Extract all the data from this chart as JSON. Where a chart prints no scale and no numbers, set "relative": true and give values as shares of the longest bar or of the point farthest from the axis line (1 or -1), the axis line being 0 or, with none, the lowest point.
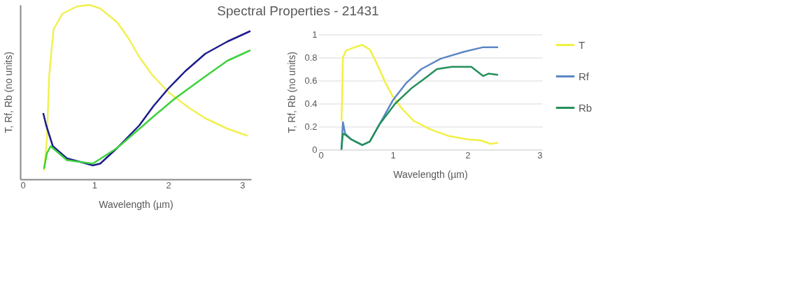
{
  "chart_data": [
    {
      "type": "line",
      "title": "Spectral Properties - 21431",
      "xlabel": "Wavelength (µm)",
      "ylabel": "T, Rf, Rb (no units)",
      "relative": true,
      "xlim": [
        0,
        3.12
      ],
      "xticks": [
        0,
        1,
        2,
        3
      ],
      "tick_labels": "x",
      "grid": false,
      "legend": false,
      "series": [
        {
          "color": "#f0f050",
          "x": [
            0.32,
            0.36,
            0.39,
            0.42,
            0.45,
            0.57,
            0.76,
            0.93,
            1.08,
            1.31,
            1.46,
            1.61,
            1.78,
            2.0,
            2.28,
            2.5,
            2.8,
            3.07
          ],
          "values": [
            0.05,
            0.23,
            0.59,
            0.73,
            0.86,
            0.95,
            0.99,
            1.0,
            0.98,
            0.9,
            0.81,
            0.7,
            0.6,
            0.5,
            0.41,
            0.35,
            0.29,
            0.25
          ]
        },
        {
          "color": "#1c1c8c",
          "x": [
            0.31,
            0.35,
            0.44,
            0.63,
            0.81,
            0.98,
            1.08,
            1.31,
            1.61,
            1.8,
            2.0,
            2.23,
            2.5,
            2.8,
            3.11
          ],
          "values": [
            0.38,
            0.31,
            0.19,
            0.12,
            0.1,
            0.08,
            0.09,
            0.18,
            0.31,
            0.42,
            0.52,
            0.62,
            0.72,
            0.79,
            0.85
          ]
        },
        {
          "color": "#3cd23c",
          "x": [
            0.32,
            0.36,
            0.41,
            0.63,
            0.98,
            1.31,
            1.61,
            1.8,
            2.08,
            2.5,
            2.8,
            3.11
          ],
          "values": [
            0.06,
            0.15,
            0.19,
            0.11,
            0.09,
            0.18,
            0.29,
            0.36,
            0.46,
            0.59,
            0.68,
            0.74
          ]
        }
      ]
    },
    {
      "type": "line",
      "xlabel": "Wavelength (µm)",
      "ylabel": "T, Rf, Rb (no units)",
      "xlim": [
        0,
        3
      ],
      "xticks": [
        0,
        1,
        2,
        3
      ],
      "ylim": [
        0,
        1
      ],
      "yticks": [
        0,
        0.2,
        0.4,
        0.6,
        0.8,
        1
      ],
      "grid": "y",
      "legend": "right",
      "series": [
        {
          "name": "T",
          "color": "#f2f040",
          "x": [
            0.31,
            0.32,
            0.33,
            0.37,
            0.49,
            0.59,
            0.69,
            0.79,
            0.9,
            1.0,
            1.13,
            1.28,
            1.49,
            1.74,
            2.0,
            2.18,
            2.31,
            2.41
          ],
          "values": [
            0.25,
            0.48,
            0.8,
            0.86,
            0.89,
            0.91,
            0.87,
            0.74,
            0.58,
            0.46,
            0.35,
            0.25,
            0.18,
            0.12,
            0.09,
            0.08,
            0.05,
            0.06
          ]
        },
        {
          "name": "Rf",
          "color": "#5b87c5",
          "x": [
            0.31,
            0.33,
            0.36,
            0.44,
            0.59,
            0.69,
            0.82,
            1.0,
            1.18,
            1.38,
            1.64,
            1.95,
            2.21,
            2.41
          ],
          "values": [
            0,
            0.24,
            0.14,
            0.09,
            0.04,
            0.07,
            0.22,
            0.43,
            0.58,
            0.7,
            0.79,
            0.85,
            0.89,
            0.89
          ]
        },
        {
          "name": "Rb",
          "color": "#23915a",
          "x": [
            0.31,
            0.33,
            0.36,
            0.44,
            0.59,
            0.69,
            0.82,
            1.03,
            1.26,
            1.41,
            1.59,
            1.79,
            2.05,
            2.21,
            2.28,
            2.41
          ],
          "values": [
            0,
            0.14,
            0.13,
            0.09,
            0.04,
            0.07,
            0.22,
            0.4,
            0.54,
            0.61,
            0.7,
            0.72,
            0.72,
            0.64,
            0.66,
            0.65
          ]
        }
      ]
    }
  ]
}
